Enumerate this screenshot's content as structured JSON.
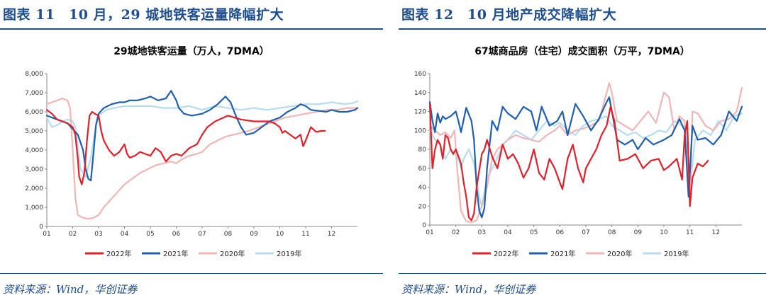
{
  "panels": [
    {
      "figure_title": "图表 11　10 月，29 城地铁客运量降幅扩大",
      "source": "资料来源：Wind，华创证券"
    },
    {
      "figure_title": "图表 12　10 月地产成交降幅扩大",
      "source": "资料来源：Wind，华创证券"
    }
  ],
  "chart_data": [
    {
      "type": "line",
      "title": "29城地铁客运量（万人，7DMA）",
      "x_ticks": [
        "01",
        "02",
        "03",
        "04",
        "05",
        "06",
        "07",
        "08",
        "09",
        "10",
        "11",
        "12"
      ],
      "y_ticks": [
        "0",
        "1,000",
        "2,000",
        "3,000",
        "4,000",
        "5,000",
        "6,000",
        "7,000",
        "8,000"
      ],
      "ylim": [
        0,
        8000
      ],
      "xlim": [
        0,
        12
      ],
      "series": [
        {
          "name": "2022年",
          "color": "#e0202a",
          "x": [
            0,
            0.2,
            0.4,
            0.6,
            0.8,
            1.0,
            1.1,
            1.2,
            1.25,
            1.35,
            1.45,
            1.55,
            1.65,
            1.75,
            1.85,
            2.0,
            2.1,
            2.2,
            2.4,
            2.6,
            2.8,
            3.0,
            3.1,
            3.2,
            3.4,
            3.6,
            3.8,
            4.0,
            4.2,
            4.4,
            4.6,
            4.8,
            5.0,
            5.2,
            5.5,
            5.8,
            6.0,
            6.2,
            6.5,
            7.0,
            7.5,
            8.0,
            8.3,
            8.6,
            8.8,
            9.0,
            9.1,
            9.2,
            9.4,
            9.6,
            9.8,
            9.9,
            10.0,
            10.2,
            10.4,
            10.6,
            10.7,
            10.75
          ],
          "values": [
            6100,
            5900,
            5600,
            5500,
            5400,
            5200,
            4800,
            3500,
            2600,
            2200,
            2800,
            4500,
            5800,
            6000,
            5900,
            5800,
            5000,
            4500,
            4000,
            3700,
            3900,
            4300,
            3800,
            3600,
            3700,
            3900,
            3800,
            3700,
            4100,
            3900,
            3400,
            3700,
            3800,
            3700,
            4100,
            4300,
            4800,
            5200,
            5500,
            5800,
            5600,
            5500,
            5500,
            5500,
            5400,
            5200,
            4900,
            5000,
            4800,
            4600,
            4800,
            4200,
            4500,
            5200,
            4950,
            5000,
            5000,
            5000
          ]
        },
        {
          "name": "2021年",
          "color": "#1f5fae",
          "x": [
            0,
            0.2,
            0.4,
            0.6,
            0.8,
            1.0,
            1.2,
            1.4,
            1.5,
            1.6,
            1.7,
            1.8,
            1.9,
            2.0,
            2.2,
            2.5,
            2.8,
            3.0,
            3.2,
            3.5,
            3.8,
            4.0,
            4.3,
            4.6,
            4.8,
            5.0,
            5.1,
            5.3,
            5.6,
            6.0,
            6.3,
            6.6,
            6.9,
            7.1,
            7.3,
            7.5,
            7.7,
            8.0,
            8.3,
            8.6,
            9.0,
            9.3,
            9.6,
            9.8,
            10.0,
            10.2,
            10.5,
            10.8,
            11.0,
            11.3,
            11.6,
            11.9,
            12.0
          ],
          "values": [
            5800,
            5700,
            5600,
            5500,
            5400,
            5100,
            4800,
            4000,
            3000,
            2500,
            2400,
            3800,
            5300,
            5900,
            6200,
            6400,
            6500,
            6500,
            6600,
            6600,
            6700,
            6800,
            6600,
            6700,
            7100,
            6600,
            6200,
            5900,
            5800,
            5900,
            6100,
            6400,
            6800,
            6500,
            5800,
            5200,
            4800,
            4900,
            5200,
            5500,
            5700,
            6000,
            6200,
            6400,
            6300,
            6100,
            6050,
            6000,
            6100,
            6000,
            6000,
            6100,
            6200
          ]
        },
        {
          "name": "2020年",
          "color": "#f0b6b6",
          "x": [
            0,
            0.2,
            0.4,
            0.6,
            0.8,
            0.9,
            1.0,
            1.1,
            1.2,
            1.4,
            1.6,
            1.8,
            2.0,
            2.2,
            2.4,
            2.6,
            2.8,
            3.0,
            3.3,
            3.6,
            3.9,
            4.2,
            4.5,
            4.8,
            5.0,
            5.2,
            5.5,
            5.8,
            6.0,
            6.3,
            6.6,
            6.9,
            7.2,
            7.5,
            7.8,
            8.0,
            8.4,
            8.8,
            9.2,
            9.6,
            10.0,
            10.4,
            10.8,
            11.2,
            11.6,
            12.0
          ],
          "values": [
            6400,
            6500,
            6600,
            6700,
            6600,
            6200,
            4000,
            1500,
            600,
            450,
            400,
            450,
            600,
            1000,
            1300,
            1600,
            1900,
            2200,
            2500,
            2800,
            3000,
            3200,
            3300,
            3400,
            3300,
            3500,
            3700,
            3800,
            3900,
            4300,
            4500,
            4700,
            4800,
            4900,
            5000,
            5100,
            5300,
            5500,
            5700,
            5800,
            5900,
            6000,
            6100,
            6100,
            6200,
            6200
          ]
        },
        {
          "name": "2019年",
          "color": "#b6dcef",
          "x": [
            0,
            0.2,
            0.4,
            0.6,
            0.8,
            1.0,
            1.1,
            1.2,
            1.3,
            1.5,
            1.7,
            1.9,
            2.0,
            2.3,
            2.6,
            3.0,
            3.5,
            4.0,
            4.5,
            5.0,
            5.5,
            6.0,
            6.5,
            7.0,
            7.5,
            8.0,
            8.5,
            9.0,
            9.5,
            10.0,
            10.5,
            11.0,
            11.5,
            11.8,
            12.0
          ],
          "values": [
            5700,
            5200,
            5300,
            5500,
            5600,
            5500,
            5200,
            4200,
            3000,
            2600,
            3600,
            5300,
            5800,
            6100,
            6200,
            6300,
            6300,
            6300,
            6200,
            6200,
            6300,
            6100,
            6300,
            6200,
            6100,
            6200,
            6100,
            6200,
            6300,
            6400,
            6400,
            6500,
            6400,
            6450,
            6550
          ]
        }
      ]
    },
    {
      "type": "line",
      "title": "67城商品房（住宅）成交面积（万平，7DMA）",
      "x_ticks": [
        "01",
        "02",
        "03",
        "04",
        "05",
        "06",
        "07",
        "08",
        "09",
        "10",
        "11",
        "12"
      ],
      "y_ticks": [
        "0",
        "20",
        "40",
        "60",
        "80",
        "100",
        "120",
        "140",
        "160"
      ],
      "ylim": [
        0,
        160
      ],
      "xlim": [
        0,
        12
      ],
      "series": [
        {
          "name": "2022年",
          "color": "#e0202a",
          "x": [
            0,
            0.1,
            0.2,
            0.3,
            0.4,
            0.5,
            0.6,
            0.7,
            0.8,
            0.9,
            1.0,
            1.2,
            1.3,
            1.4,
            1.5,
            1.6,
            1.7,
            1.8,
            2.0,
            2.1,
            2.2,
            2.4,
            2.6,
            2.8,
            3.0,
            3.2,
            3.4,
            3.6,
            3.8,
            4.0,
            4.2,
            4.4,
            4.6,
            4.8,
            5.0,
            5.1,
            5.3,
            5.5,
            5.7,
            5.9,
            6.0,
            6.2,
            6.4,
            6.6,
            6.8,
            6.95,
            7.1,
            7.3,
            7.6,
            7.9,
            8.2,
            8.5,
            8.8,
            9.0,
            9.2,
            9.5,
            9.7,
            9.8,
            9.9,
            10.0,
            10.1,
            10.3,
            10.5,
            10.7
          ],
          "values": [
            128,
            60,
            80,
            90,
            85,
            70,
            95,
            92,
            80,
            75,
            80,
            65,
            45,
            30,
            8,
            5,
            12,
            40,
            75,
            80,
            90,
            72,
            60,
            85,
            70,
            75,
            65,
            50,
            60,
            80,
            55,
            48,
            70,
            60,
            45,
            38,
            70,
            85,
            60,
            45,
            60,
            70,
            80,
            95,
            105,
            125,
            110,
            68,
            70,
            75,
            60,
            68,
            70,
            58,
            62,
            70,
            48,
            95,
            110,
            20,
            50,
            65,
            62,
            68
          ]
        },
        {
          "name": "2021年",
          "color": "#1f5fae",
          "x": [
            0,
            0.1,
            0.2,
            0.3,
            0.4,
            0.5,
            0.6,
            0.8,
            1.0,
            1.1,
            1.2,
            1.4,
            1.6,
            1.7,
            1.8,
            1.9,
            2.0,
            2.1,
            2.2,
            2.4,
            2.6,
            2.8,
            3.0,
            3.3,
            3.6,
            3.9,
            4.1,
            4.3,
            4.6,
            4.9,
            5.1,
            5.3,
            5.6,
            5.9,
            6.2,
            6.5,
            6.8,
            6.9,
            7.0,
            7.2,
            7.5,
            7.8,
            8.0,
            8.3,
            8.6,
            9.0,
            9.3,
            9.6,
            9.8,
            9.95,
            10.1,
            10.3,
            10.6,
            10.9,
            11.2,
            11.5,
            11.8,
            12.0
          ],
          "values": [
            130,
            110,
            98,
            118,
            108,
            115,
            112,
            115,
            120,
            110,
            98,
            124,
            110,
            90,
            40,
            15,
            8,
            18,
            60,
            110,
            100,
            125,
            118,
            112,
            125,
            120,
            100,
            125,
            105,
            110,
            120,
            95,
            128,
            115,
            100,
            112,
            130,
            135,
            120,
            90,
            85,
            90,
            80,
            92,
            85,
            90,
            95,
            112,
            100,
            30,
            105,
            90,
            92,
            85,
            95,
            120,
            110,
            125
          ]
        },
        {
          "name": "2020年",
          "color": "#f0b6b6",
          "x": [
            0,
            0.2,
            0.4,
            0.6,
            0.8,
            0.95,
            1.05,
            1.2,
            1.4,
            1.6,
            1.8,
            2.0,
            2.2,
            2.4,
            2.6,
            2.8,
            3.0,
            3.3,
            3.6,
            3.9,
            4.2,
            4.5,
            4.8,
            5.0,
            5.3,
            5.6,
            5.9,
            6.2,
            6.5,
            6.7,
            6.9,
            7.0,
            7.2,
            7.5,
            7.8,
            8.1,
            8.4,
            8.7,
            9.0,
            9.2,
            9.4,
            9.6,
            9.8,
            10.0,
            10.1,
            10.3,
            10.6,
            10.9,
            11.2,
            11.5,
            11.8,
            12.0
          ],
          "values": [
            105,
            100,
            95,
            98,
            92,
            100,
            60,
            15,
            4,
            3,
            5,
            20,
            40,
            70,
            80,
            85,
            90,
            95,
            92,
            90,
            88,
            95,
            100,
            105,
            95,
            100,
            102,
            105,
            110,
            130,
            150,
            140,
            110,
            105,
            100,
            110,
            120,
            108,
            140,
            135,
            100,
            115,
            110,
            30,
            120,
            118,
            105,
            100,
            110,
            112,
            120,
            145
          ]
        },
        {
          "name": "2019年",
          "color": "#b6dcef",
          "x": [
            0,
            0.2,
            0.4,
            0.6,
            0.8,
            1.0,
            1.1,
            1.2,
            1.3,
            1.5,
            1.7,
            1.9,
            2.0,
            2.2,
            2.5,
            2.8,
            3.0,
            3.3,
            3.6,
            3.9,
            4.2,
            4.5,
            4.8,
            5.0,
            5.3,
            5.6,
            5.9,
            6.2,
            6.5,
            6.8,
            7.0,
            7.3,
            7.6,
            7.9,
            8.2,
            8.5,
            8.8,
            9.1,
            9.4,
            9.7,
            9.9,
            10.0,
            10.2,
            10.5,
            10.8,
            11.1,
            11.4,
            11.7,
            12.0
          ],
          "values": [
            100,
            90,
            85,
            70,
            80,
            75,
            70,
            60,
            70,
            80,
            65,
            30,
            20,
            50,
            65,
            85,
            90,
            100,
            95,
            90,
            100,
            110,
            105,
            108,
            100,
            95,
            105,
            110,
            112,
            115,
            105,
            100,
            95,
            98,
            92,
            95,
            100,
            98,
            110,
            105,
            95,
            40,
            90,
            100,
            95,
            110,
            100,
            115,
            118
          ]
        }
      ]
    }
  ]
}
